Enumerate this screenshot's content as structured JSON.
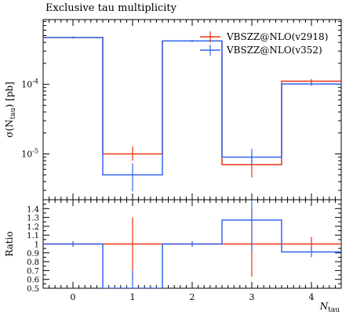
{
  "title": "Exclusive tau multiplicity",
  "colors": {
    "red": "#ee3311",
    "blue": "#3366ee",
    "axis": "#000000"
  },
  "chart_data": [
    {
      "type": "line",
      "plot": "main",
      "ylabel": "σ(N_tau) [pb]",
      "yscale": "log",
      "ylim": [
        2.2e-06,
        0.00085
      ],
      "xlim": [
        -0.5,
        4.5
      ],
      "ytick_labels": [
        "10^-5",
        "10^-4"
      ],
      "legend_position": "top-right",
      "series": [
        {
          "name": "VBSZZ@NLO(v2918)",
          "color": "#ee3311",
          "x_bins": [
            0,
            1,
            2,
            3,
            4
          ],
          "values": [
            0.00047,
            1e-05,
            0.00042,
            7e-06,
            0.000111
          ],
          "err_low": [
            0.000455,
            8e-06,
            0.000405,
            4.6e-06,
            0.000103
          ],
          "err_high": [
            0.000485,
            1.28e-05,
            0.000435,
            9.8e-06,
            0.000119
          ]
        },
        {
          "name": "VBSZZ@NLO(v352)",
          "color": "#3366ee",
          "x_bins": [
            0,
            1,
            2,
            3,
            4
          ],
          "values": [
            0.00047,
            5e-06,
            0.00042,
            9e-06,
            0.000101
          ],
          "err_low": [
            0.000455,
            2.9e-06,
            0.000405,
            6.8e-06,
            9.5e-05
          ],
          "err_high": [
            0.000485,
            7.3e-06,
            0.000435,
            1.18e-05,
            0.000108
          ]
        }
      ]
    },
    {
      "type": "line",
      "plot": "ratio",
      "xlabel": "N_tau",
      "ylabel": "Ratio",
      "ylim": [
        0.5,
        1.5
      ],
      "xlim": [
        -0.5,
        4.5
      ],
      "x_tick_labels": [
        "0",
        "1",
        "2",
        "3",
        "4"
      ],
      "y_tick_labels": [
        "0.5",
        "0.6",
        "0.7",
        "0.8",
        "0.9",
        "1",
        "1.1",
        "1.2",
        "1.3",
        "1.4"
      ],
      "series": [
        {
          "name": "VBSZZ@NLO(v2918)",
          "color": "#ee3311",
          "x_bins": [
            0,
            1,
            2,
            3,
            4
          ],
          "values": [
            1.0,
            1.0,
            1.0,
            1.0,
            1.0
          ],
          "err_low": [
            0.97,
            0.6,
            0.97,
            0.63,
            0.92
          ],
          "err_high": [
            1.03,
            1.3,
            1.03,
            1.4,
            1.08
          ]
        },
        {
          "name": "VBSZZ@NLO(v352)",
          "color": "#3366ee",
          "x_bins": [
            0,
            1,
            2,
            3,
            4
          ],
          "values": [
            1.0,
            0.5,
            1.0,
            1.27,
            0.91
          ],
          "err_low": [
            0.97,
            0.3,
            0.97,
            0.93,
            0.85
          ],
          "err_high": [
            1.03,
            0.7,
            1.03,
            1.6,
            0.97
          ]
        }
      ]
    }
  ]
}
